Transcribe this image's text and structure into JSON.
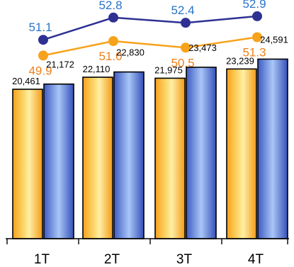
{
  "chart_data": [
    {
      "type": "line",
      "categories": [
        "1T",
        "2T",
        "3T",
        "4T"
      ],
      "series": [
        {
          "values": [
            51.1,
            52.8,
            52.4,
            52.9
          ],
          "color": "#2e3192",
          "label_color": "#2a73c8"
        },
        {
          "values": [
            49.9,
            51.0,
            50.5,
            51.3
          ],
          "color": "#f7a21b",
          "label_color": "#f07f19"
        }
      ],
      "ylim": [
        49.0,
        53.6
      ],
      "grid": false,
      "legend": "none"
    },
    {
      "type": "bar",
      "categories": [
        "1T",
        "2T",
        "3T",
        "4T"
      ],
      "series": [
        {
          "values": [
            20461,
            22110,
            21975,
            23239
          ],
          "color": "#fbd45a"
        },
        {
          "values": [
            21172,
            22830,
            23473,
            24591
          ],
          "color": "#6f8fe0"
        }
      ],
      "value_labels": [
        [
          "20,461",
          "22,110",
          "21,975",
          "23,239"
        ],
        [
          "21,172",
          "22,830",
          "23,473",
          "24,591"
        ]
      ],
      "ylim": [
        0,
        29000
      ],
      "grid": false,
      "legend": "none"
    }
  ]
}
